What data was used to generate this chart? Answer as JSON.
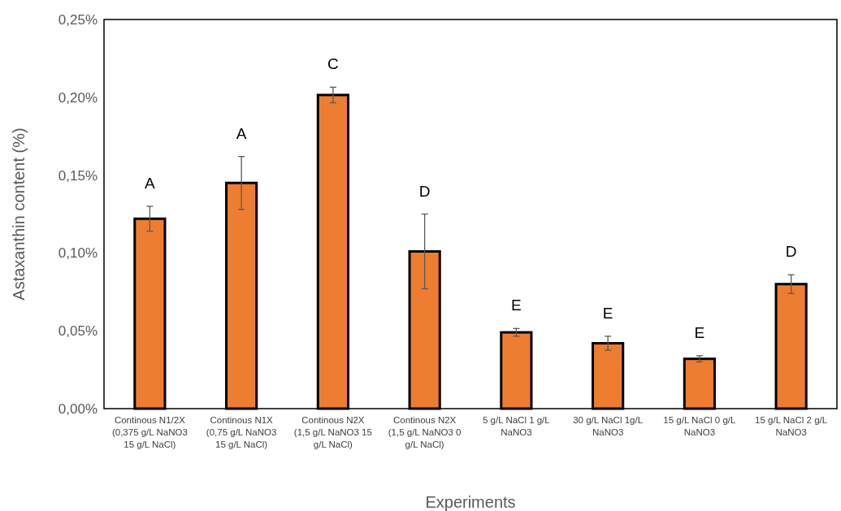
{
  "chart_data": {
    "type": "bar",
    "categories": [
      "Continous N1/2X (0,375 g/L NaNO3  15 g/L NaCl)",
      "Continous N1X (0,75 g/L NaNO3 15 g/L NaCl)",
      "Continous N2X (1,5 g/L NaNO3 15 g/L NaCl)",
      "Continous N2X (1,5 g/L NaNO3 0 g/L NaCl)",
      "5 g/L NaCl  1 g/L NaNO3",
      "30 g/L NaCl  1g/L NaNO3",
      "15 g/L NaCl  0 g/L NaNO3",
      "15 g/L NaCl  2 g/L NaNO3"
    ],
    "values": [
      0.122,
      0.145,
      0.2015,
      0.101,
      0.049,
      0.042,
      0.032,
      0.08
    ],
    "errors": [
      0.008,
      0.017,
      0.005,
      0.024,
      0.0025,
      0.0045,
      0.002,
      0.006
    ],
    "color": "#ed7d31",
    "ylim": [
      0,
      0.25
    ],
    "yticks": [
      {
        "value": 0,
        "label": "0,00%"
      },
      {
        "value": 0.05,
        "label": "0,05%"
      },
      {
        "value": 0.1,
        "label": "0,10%"
      },
      {
        "value": 0.15,
        "label": "0,15%"
      },
      {
        "value": 0.2,
        "label": "0,20%"
      },
      {
        "value": 0.25,
        "label": "0,25%"
      }
    ],
    "xlabel": "Experiments",
    "ylabel": "Astaxanthin content (%)",
    "grid": false,
    "annotations": [
      "A",
      "A",
      "C",
      "D",
      "E",
      "E",
      "E",
      "D"
    ]
  }
}
